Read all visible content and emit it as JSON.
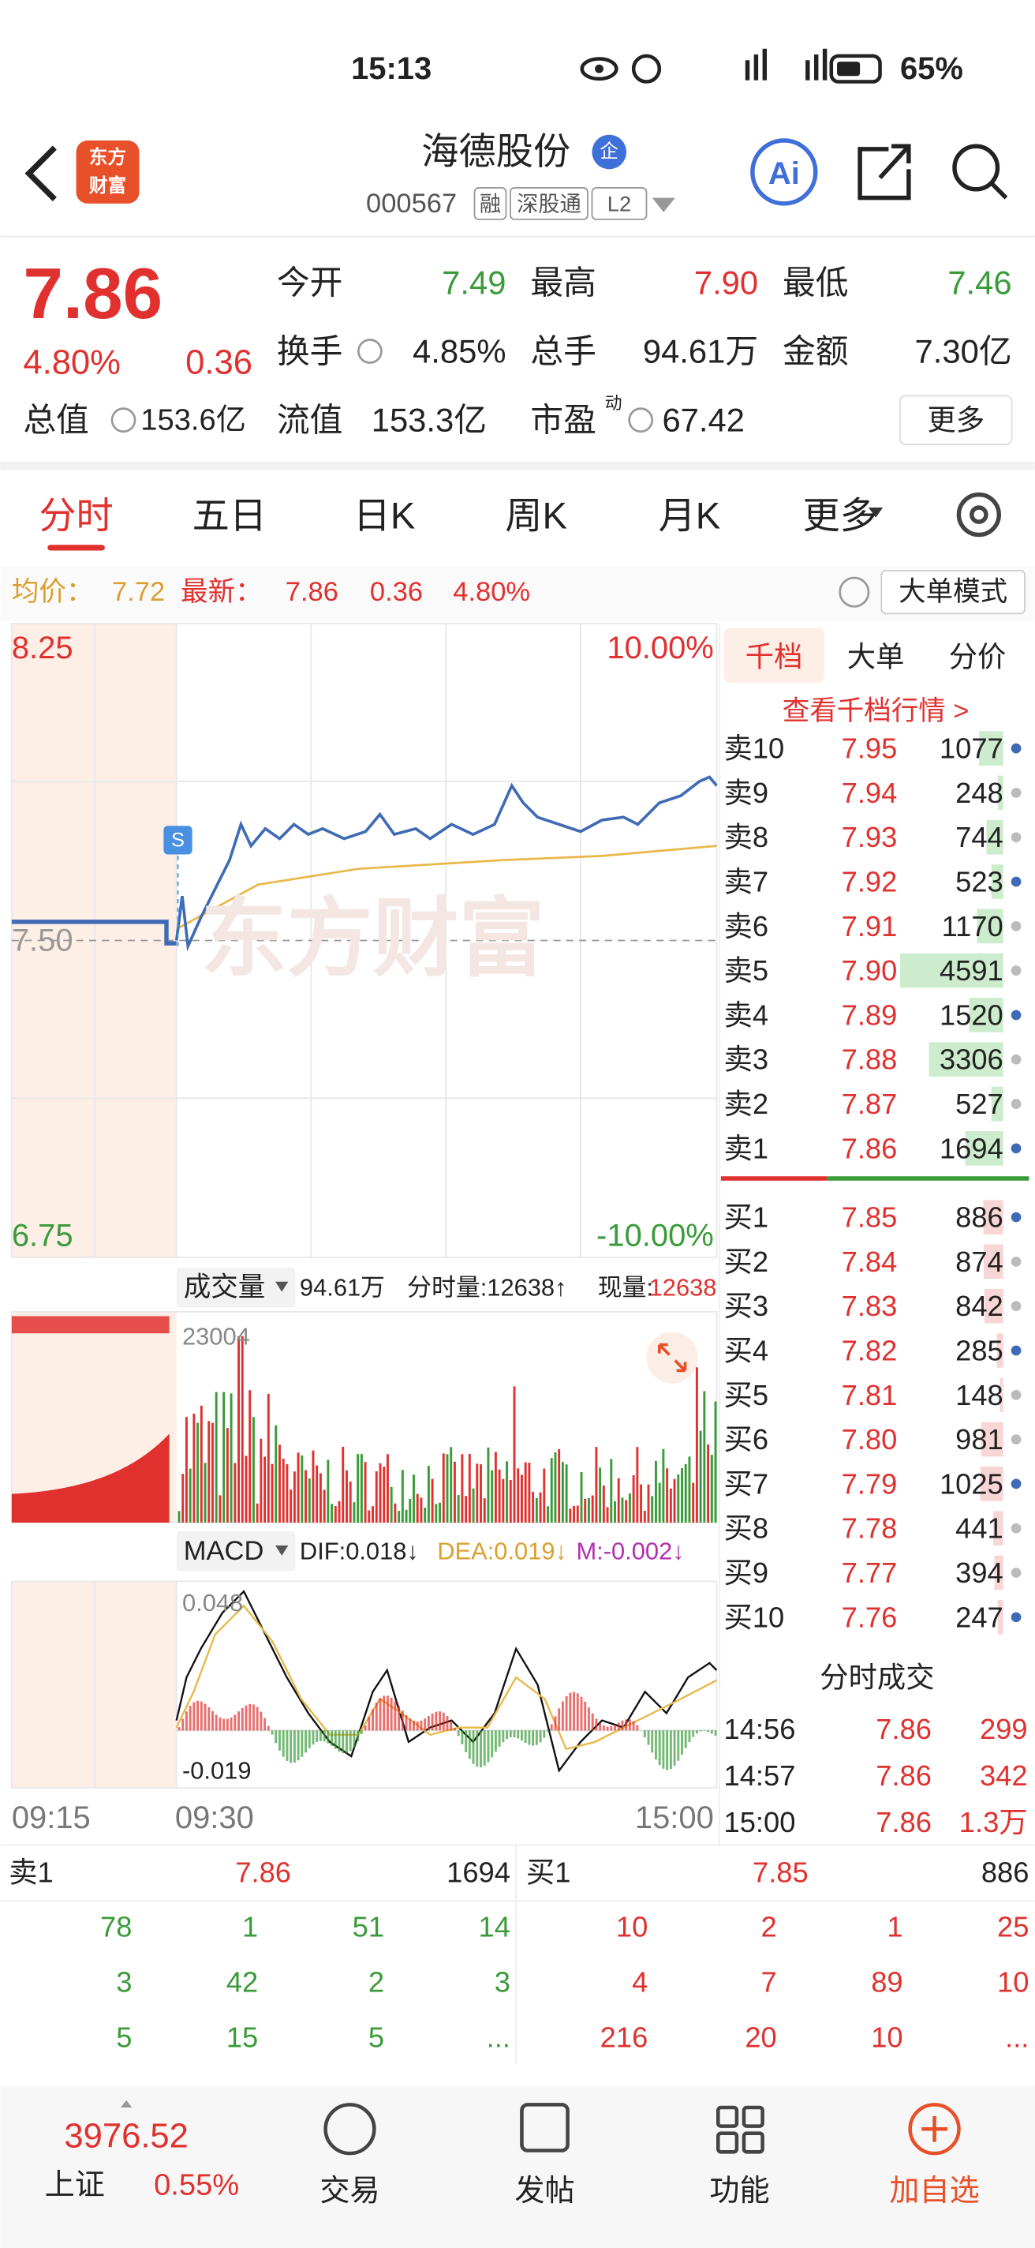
{
  "status_bar": {
    "time": "15:13",
    "battery": "65%"
  },
  "header": {
    "logo": [
      "东方",
      "财富"
    ],
    "name": "海德股份",
    "badge": "企",
    "code": "000567",
    "tags": [
      "融",
      "深股通",
      "L2"
    ]
  },
  "quote": {
    "price": "7.86",
    "change_pct": "4.80%",
    "change": "0.36",
    "fields": [
      {
        "label": "今开",
        "value": "7.49"
      },
      {
        "label": "最高",
        "value": "7.90"
      },
      {
        "label": "最低",
        "value": "7.46"
      },
      {
        "label": "换手",
        "value": "4.85%"
      },
      {
        "label": "总手",
        "value": "94.61万"
      },
      {
        "label": "金额",
        "value": "7.30亿"
      },
      {
        "label": "总值",
        "value": "153.6亿"
      },
      {
        "label": "流值",
        "value": "153.3亿"
      },
      {
        "label": "市盈",
        "sup": "动",
        "value": "67.42"
      }
    ],
    "more": "更多"
  },
  "tabs": [
    "分时",
    "五日",
    "日K",
    "周K",
    "月K",
    "更多"
  ],
  "info_bar": {
    "avg_label": "均价：",
    "avg": "7.72",
    "latest_label": "最新：",
    "latest": "7.86",
    "change": "0.36",
    "change_pct": "4.80%",
    "mode": "大单模式"
  },
  "chart": {
    "price_high": "8.25",
    "pct_high": "10.00%",
    "price_base": "7.50",
    "price_low": "6.75",
    "pct_low": "-10.00%",
    "watermark": "东方财富",
    "volume": {
      "label": "成交量",
      "total": "94.61万",
      "period": "分时量:12638↑",
      "current_label": "现量:",
      "current": "12638",
      "max": "23004"
    },
    "macd": {
      "label": "MACD",
      "dif": "DIF:0.018↓",
      "dea": "DEA:0.019↓",
      "m": "M:-0.002↓",
      "max": "0.048",
      "min": "-0.019"
    },
    "times": [
      "09:15",
      "09:30",
      "15:00"
    ]
  },
  "order_book": {
    "tabs": [
      "千档",
      "大单",
      "分价"
    ],
    "link": "查看千档行情 >",
    "asks": [
      {
        "label": "卖10",
        "price": "7.95",
        "volume": 1077
      },
      {
        "label": "卖9",
        "price": "7.94",
        "volume": 248
      },
      {
        "label": "卖8",
        "price": "7.93",
        "volume": 744
      },
      {
        "label": "卖7",
        "price": "7.92",
        "volume": 523
      },
      {
        "label": "卖6",
        "price": "7.91",
        "volume": 1170
      },
      {
        "label": "卖5",
        "price": "7.90",
        "volume": 4591
      },
      {
        "label": "卖4",
        "price": "7.89",
        "volume": 1520
      },
      {
        "label": "卖3",
        "price": "7.88",
        "volume": 3306
      },
      {
        "label": "卖2",
        "price": "7.87",
        "volume": 527
      },
      {
        "label": "卖1",
        "price": "7.86",
        "volume": 1694
      }
    ],
    "bids": [
      {
        "label": "买1",
        "price": "7.85",
        "volume": 886
      },
      {
        "label": "买2",
        "price": "7.84",
        "volume": 874
      },
      {
        "label": "买3",
        "price": "7.83",
        "volume": 842
      },
      {
        "label": "买4",
        "price": "7.82",
        "volume": 285
      },
      {
        "label": "买5",
        "price": "7.81",
        "volume": 148
      },
      {
        "label": "买6",
        "price": "7.80",
        "volume": 981
      },
      {
        "label": "买7",
        "price": "7.79",
        "volume": 1025
      },
      {
        "label": "买8",
        "price": "7.78",
        "volume": 441
      },
      {
        "label": "买9",
        "price": "7.77",
        "volume": 394
      },
      {
        "label": "买10",
        "price": "7.76",
        "volume": 247
      }
    ]
  },
  "trades": {
    "title": "分时成交",
    "rows": [
      [
        "14:56",
        "7.86",
        "299"
      ],
      [
        "14:57",
        "7.86",
        "342"
      ],
      [
        "15:00",
        "7.86",
        "1.3万"
      ]
    ]
  },
  "queue": {
    "sell": {
      "label": "卖1",
      "price": "7.86",
      "volume": "1694",
      "orders": [
        [
          "78",
          "1",
          "51",
          "14"
        ],
        [
          "3",
          "42",
          "2",
          "3"
        ],
        [
          "5",
          "15",
          "5",
          "..."
        ]
      ]
    },
    "buy": {
      "label": "买1",
      "price": "7.85",
      "volume": "886",
      "orders": [
        [
          "10",
          "2",
          "1",
          "25"
        ],
        [
          "4",
          "7",
          "89",
          "10"
        ],
        [
          "216",
          "20",
          "10",
          "..."
        ]
      ]
    }
  },
  "nav": {
    "index_value": "3976.52",
    "index_name": "上证",
    "index_pct": "0.55%",
    "items": [
      "交易",
      "发帖",
      "功能",
      "加自选"
    ]
  }
}
